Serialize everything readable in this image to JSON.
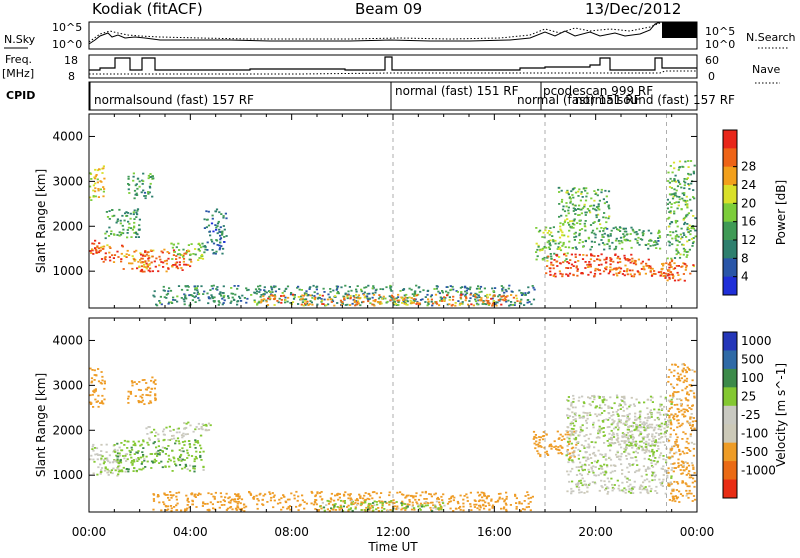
{
  "header": {
    "station": "Kodiak (fitACF)",
    "beam": "Beam 09",
    "date": "13/Dec/2012"
  },
  "left_labels": {
    "nsky": "N.Sky",
    "freq_line1": "Freq.",
    "freq_line2": "[MHz]",
    "cpid": "CPID"
  },
  "right_labels": {
    "nsearch": "N.Search",
    "nave": "Nave"
  },
  "noise_axis": {
    "left_ticks": [
      "10^5",
      "10^0"
    ],
    "right_ticks": [
      "10^5",
      "10^0"
    ]
  },
  "freq_axis": {
    "left_ticks": [
      "18",
      "8"
    ],
    "right_ticks": [
      "60",
      "0"
    ]
  },
  "cpid_labels": [
    {
      "text": "normalsound (fast) 157 RF",
      "start_hour": 0.0
    },
    {
      "text": "normal (fast) 151 RF",
      "start_hour": 12.0
    },
    {
      "text": "normal (fast) 151 RF",
      "start_hour": 18.0
    },
    {
      "text": "pcodescan 999 RF",
      "start_hour": 18.0
    },
    {
      "text": "normalsound (fast) 157 RF",
      "start_hour": 19.4
    }
  ],
  "x_axis": {
    "label": "Time UT",
    "ticks": [
      "00:00",
      "04:00",
      "08:00",
      "12:00",
      "16:00",
      "20:00",
      "00:00"
    ]
  },
  "colors": {
    "power_scale": [
      "#1f2fd8",
      "#2a56a8",
      "#2e7f6e",
      "#3f9a55",
      "#7ccd3a",
      "#d9e02a",
      "#f2a01c",
      "#ee6417",
      "#e8261a"
    ],
    "velocity_scale": [
      "#2436b8",
      "#2f6aa6",
      "#3c8a4a",
      "#84c832",
      "#c9c9c1",
      "#ccc9b8",
      "#ee9c26",
      "#ea6a14",
      "#e82c14"
    ]
  },
  "chart_data": [
    {
      "type": "heatmap",
      "title": "",
      "xlabel": "",
      "ylabel": "Slant Range [km]",
      "xlim": [
        0,
        24
      ],
      "ylim": [
        180,
        4500
      ],
      "y_ticks": [
        "1000",
        "2000",
        "3000",
        "4000"
      ],
      "colorbar": {
        "label": "Power [dB]",
        "range": [
          0,
          32
        ],
        "ticks": [
          "4",
          "8",
          "12",
          "16",
          "20",
          "24",
          "28"
        ]
      },
      "cells": [
        {
          "t": [
            0.0,
            0.6
          ],
          "r": [
            2600,
            3400
          ],
          "value": 20
        },
        {
          "t": [
            0.0,
            0.4
          ],
          "r": [
            1400,
            1700
          ],
          "value": 28
        },
        {
          "t": [
            0.4,
            1.3
          ],
          "r": [
            1200,
            1600
          ],
          "value": 26
        },
        {
          "t": [
            0.6,
            2.0
          ],
          "r": [
            1750,
            2400
          ],
          "value": 12
        },
        {
          "t": [
            1.3,
            2.5
          ],
          "r": [
            1000,
            1500
          ],
          "value": 24
        },
        {
          "t": [
            2.0,
            4.0
          ],
          "r": [
            1000,
            1500
          ],
          "value": 28
        },
        {
          "t": [
            3.2,
            4.5
          ],
          "r": [
            1250,
            1650
          ],
          "value": 16
        },
        {
          "t": [
            4.5,
            5.4
          ],
          "r": [
            1400,
            2400
          ],
          "value": 8
        },
        {
          "t": [
            1.5,
            2.5
          ],
          "r": [
            2600,
            3200
          ],
          "value": 12
        },
        {
          "t": [
            2.5,
            17.6
          ],
          "r": [
            250,
            700
          ],
          "value": 10
        },
        {
          "t": [
            6.5,
            17.0
          ],
          "r": [
            250,
            500
          ],
          "value": 24
        },
        {
          "t": [
            17.6,
            19.0
          ],
          "r": [
            1250,
            2000
          ],
          "value": 16
        },
        {
          "t": [
            18.0,
            21.5
          ],
          "r": [
            900,
            1400
          ],
          "value": 28
        },
        {
          "t": [
            19.0,
            22.5
          ],
          "r": [
            1500,
            2000
          ],
          "value": 12
        },
        {
          "t": [
            18.5,
            20.5
          ],
          "r": [
            2000,
            2900
          ],
          "value": 14
        },
        {
          "t": [
            20.5,
            23.0
          ],
          "r": [
            900,
            1300
          ],
          "value": 26
        },
        {
          "t": [
            22.5,
            23.9
          ],
          "r": [
            800,
            1200
          ],
          "value": 26
        },
        {
          "t": [
            22.8,
            23.9
          ],
          "r": [
            1300,
            3500
          ],
          "value": 14
        }
      ]
    },
    {
      "type": "heatmap",
      "title": "",
      "xlabel": "Time UT",
      "ylabel": "Slant Range [km]",
      "xlim": [
        0,
        24
      ],
      "ylim": [
        180,
        4500
      ],
      "y_ticks": [
        "1000",
        "2000",
        "3000",
        "4000"
      ],
      "colorbar": {
        "label": "Velocity [m s^-1]",
        "ticks": [
          "1000",
          "500",
          "100",
          "25",
          "-25",
          "-100",
          "-500",
          "-1000"
        ]
      },
      "cells": [
        {
          "t": [
            0.0,
            0.6
          ],
          "r": [
            2500,
            3400
          ],
          "value": -300
        },
        {
          "t": [
            0.0,
            1.5
          ],
          "r": [
            1000,
            1700
          ],
          "value": 0
        },
        {
          "t": [
            1.0,
            4.5
          ],
          "r": [
            1100,
            1800
          ],
          "value": 80
        },
        {
          "t": [
            2.2,
            3.8
          ],
          "r": [
            1800,
            2100
          ],
          "value": 0
        },
        {
          "t": [
            3.6,
            4.8
          ],
          "r": [
            1900,
            2200
          ],
          "value": 0
        },
        {
          "t": [
            1.5,
            2.6
          ],
          "r": [
            2600,
            3200
          ],
          "value": -200
        },
        {
          "t": [
            2.5,
            17.5
          ],
          "r": [
            220,
            650
          ],
          "value": -300
        },
        {
          "t": [
            9.0,
            14.0
          ],
          "r": [
            220,
            450
          ],
          "value": 60
        },
        {
          "t": [
            17.5,
            19.2
          ],
          "r": [
            1400,
            2000
          ],
          "value": -300
        },
        {
          "t": [
            18.8,
            23.0
          ],
          "r": [
            600,
            2800
          ],
          "value": 0
        },
        {
          "t": [
            20.5,
            22.5
          ],
          "r": [
            1500,
            2300
          ],
          "value": 0
        },
        {
          "t": [
            22.8,
            23.9
          ],
          "r": [
            400,
            3500
          ],
          "value": -150
        }
      ]
    }
  ]
}
